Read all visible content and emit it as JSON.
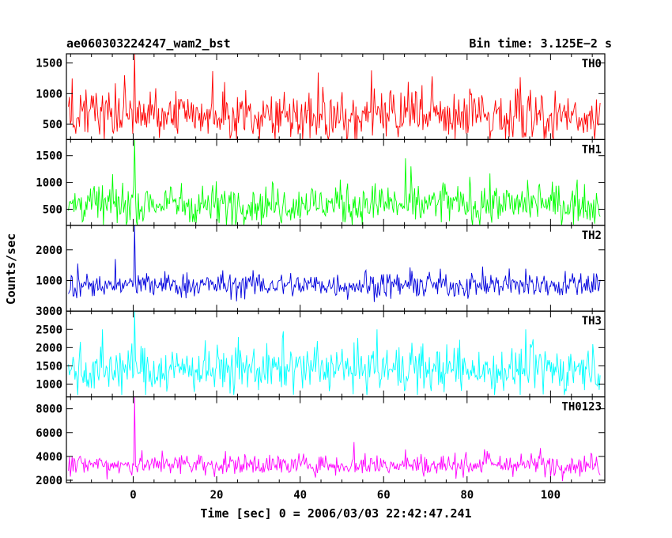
{
  "chart_data": {
    "type": "line",
    "title": "ae060303224247_wam2_bst",
    "bin_time_label": "Bin time: 3.125E−2 s",
    "xlabel": "Time [sec] 0 = 2006/03/03 22:42:47.241",
    "ylabel": "Counts/sec",
    "xlim": [
      -16,
      113
    ],
    "x_ticks": [
      0,
      20,
      40,
      60,
      80,
      100
    ],
    "x_tick_labels": [
      "0",
      "20",
      "40",
      "60",
      "80",
      "100"
    ],
    "x_range": [
      -15.5,
      112
    ],
    "burst_x": 0.3,
    "panels": [
      {
        "name": "TH0",
        "color": "#ff0000",
        "ylim": [
          250,
          1650
        ],
        "y_ticks": [
          500,
          1000,
          1500
        ],
        "y_tick_labels": [
          "500",
          "1000",
          "1500"
        ],
        "baseline": 650,
        "noise": 210,
        "min_value": 250,
        "max_value": 1380,
        "burst_value": 1650
      },
      {
        "name": "TH1",
        "color": "#00ff00",
        "ylim": [
          200,
          1800
        ],
        "y_ticks": [
          500,
          1000,
          1500
        ],
        "y_tick_labels": [
          "500",
          "1000",
          "1500"
        ],
        "baseline": 600,
        "noise": 190,
        "min_value": 200,
        "max_value": 1450,
        "burst_value": 1800
      },
      {
        "name": "TH2",
        "color": "#0000dd",
        "ylim": [
          0,
          2800
        ],
        "y_ticks": [
          1000,
          2000
        ],
        "y_tick_labels": [
          "1000",
          "2000"
        ],
        "baseline": 850,
        "noise": 210,
        "min_value": 200,
        "max_value": 1700,
        "burst_value": 2800
      },
      {
        "name": "TH3",
        "color": "#00ffff",
        "ylim": [
          650,
          3000
        ],
        "y_ticks": [
          1000,
          1500,
          2000,
          2500,
          3000
        ],
        "y_tick_labels": [
          "1000",
          "1500",
          "2000",
          "2500",
          "3000"
        ],
        "baseline": 1400,
        "noise": 320,
        "min_value": 700,
        "max_value": 2500,
        "burst_value": 3000
      },
      {
        "name": "TH0123",
        "color": "#ff00ff",
        "ylim": [
          1800,
          9000
        ],
        "y_ticks": [
          2000,
          4000,
          6000,
          8000
        ],
        "y_tick_labels": [
          "2000",
          "4000",
          "6000",
          "8000"
        ],
        "baseline": 3300,
        "noise": 450,
        "min_value": 1900,
        "max_value": 5200,
        "burst_value": 9000
      }
    ]
  }
}
